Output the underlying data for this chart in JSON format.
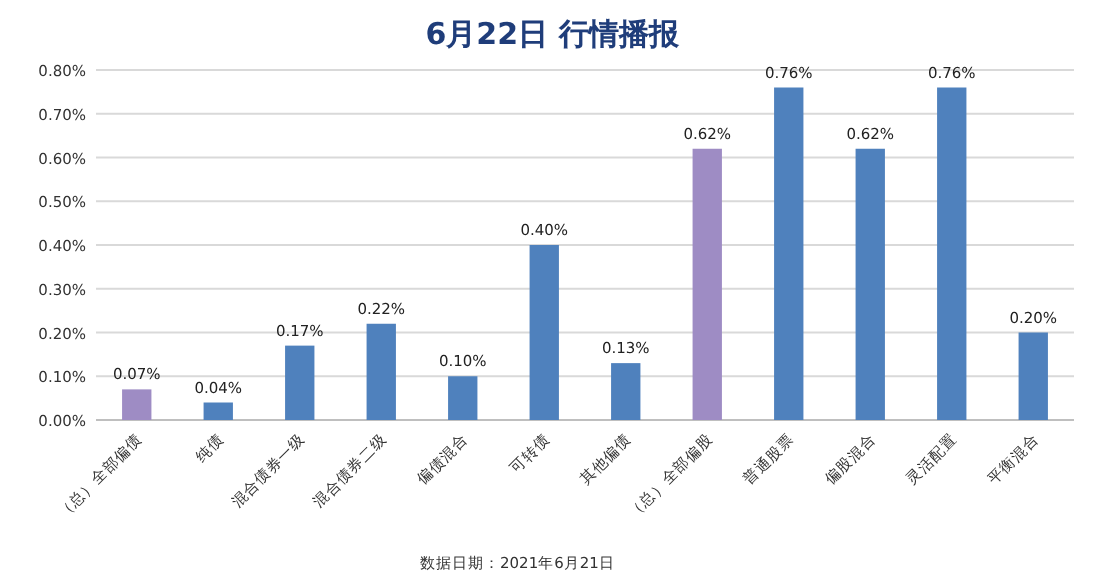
{
  "chart_data": {
    "type": "bar",
    "title": "6月22日  行情播报",
    "categories": [
      "（总）全部偏债",
      "纯债",
      "混合债券一级",
      "混合债券二级",
      "偏债混合",
      "可转债",
      "其他偏债",
      "（总）全部偏股",
      "普通股票",
      "偏股混合",
      "灵活配置",
      "平衡混合"
    ],
    "values": [
      0.07,
      0.04,
      0.17,
      0.22,
      0.1,
      0.4,
      0.13,
      0.62,
      0.76,
      0.62,
      0.76,
      0.2
    ],
    "value_labels": [
      "0.07%",
      "0.04%",
      "0.17%",
      "0.22%",
      "0.10%",
      "0.40%",
      "0.13%",
      "0.62%",
      "0.76%",
      "0.62%",
      "0.76%",
      "0.20%"
    ],
    "colors": [
      "#9e8cc4",
      "#4f81bd",
      "#4f81bd",
      "#4f81bd",
      "#4f81bd",
      "#4f81bd",
      "#4f81bd",
      "#9e8cc4",
      "#4f81bd",
      "#4f81bd",
      "#4f81bd",
      "#4f81bd"
    ],
    "ylim": [
      0,
      0.8
    ],
    "yticks": [
      {
        "value": 0,
        "label": "0.00%"
      },
      {
        "value": 0.1,
        "label": "0.10%"
      },
      {
        "value": 0.2,
        "label": "0.20%"
      },
      {
        "value": 0.3,
        "label": "0.30%"
      },
      {
        "value": 0.4,
        "label": "0.40%"
      },
      {
        "value": 0.5,
        "label": "0.50%"
      },
      {
        "value": 0.6,
        "label": "0.60%"
      },
      {
        "value": 0.7,
        "label": "0.70%"
      },
      {
        "value": 0.8,
        "label": "0.80%"
      }
    ],
    "grid": "y",
    "annotations": [
      "数据日期：2021年6月21日"
    ]
  }
}
